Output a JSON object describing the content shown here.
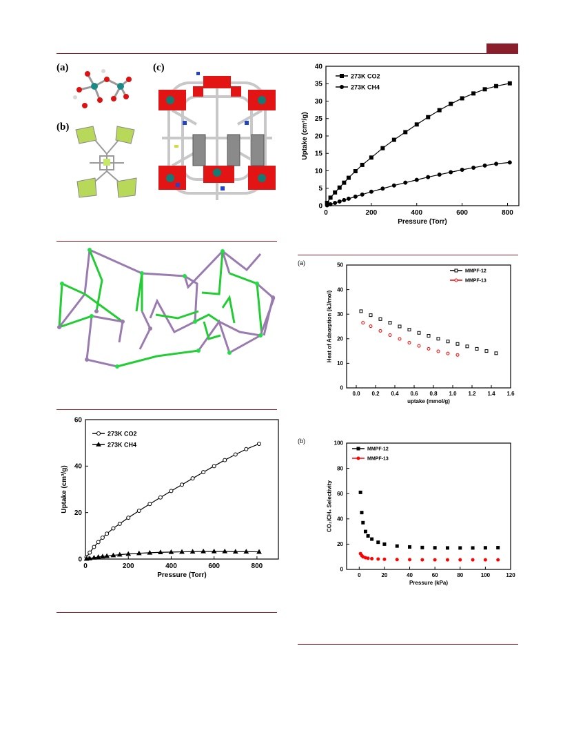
{
  "panel_labels": {
    "a": "(a)",
    "b": "(b)",
    "c": "(c)"
  },
  "heat_panel_label": "(a)",
  "selectivity_panel_label": "(b)",
  "colors": {
    "accent": "#8a1f2c",
    "mmpf12": "#000000",
    "mmpf13": "#ff0000",
    "green": "#22cc33",
    "purple": "#9a7bb0"
  },
  "chart_data": [
    {
      "type": "scatter",
      "xlabel": "Pressure (Torr)",
      "ylabel": "Uptake (cm³/g)",
      "xlim": [
        0,
        850
      ],
      "ylim": [
        0,
        40
      ],
      "xticks": [
        0,
        200,
        400,
        600,
        800
      ],
      "yticks": [
        0,
        5,
        10,
        15,
        20,
        25,
        30,
        35,
        40
      ],
      "legend": [
        "273K CO2",
        "273K CH4"
      ],
      "legend_position": "top-left",
      "series": [
        {
          "name": "273K CO2",
          "marker": "filled-square",
          "x": [
            5,
            20,
            40,
            60,
            80,
            100,
            130,
            160,
            200,
            250,
            300,
            350,
            400,
            450,
            500,
            550,
            600,
            650,
            700,
            750,
            810
          ],
          "y": [
            0.8,
            2.3,
            3.8,
            5.2,
            6.6,
            8.0,
            9.9,
            11.7,
            13.8,
            16.5,
            18.9,
            21.1,
            23.3,
            25.4,
            27.4,
            29.2,
            30.8,
            32.2,
            33.4,
            34.3,
            35.1
          ]
        },
        {
          "name": "273K CH4",
          "marker": "filled-circle",
          "x": [
            5,
            20,
            40,
            60,
            80,
            100,
            130,
            160,
            200,
            250,
            300,
            350,
            400,
            450,
            500,
            550,
            600,
            650,
            700,
            750,
            810
          ],
          "y": [
            0.1,
            0.4,
            0.8,
            1.2,
            1.6,
            2.0,
            2.6,
            3.2,
            4.0,
            4.9,
            5.8,
            6.6,
            7.4,
            8.2,
            8.9,
            9.6,
            10.3,
            10.9,
            11.5,
            12.0,
            12.4
          ]
        }
      ]
    },
    {
      "type": "scatter",
      "xlabel": "Pressure (Torr)",
      "ylabel": "Uptake (cm³/g)",
      "xlim": [
        0,
        900
      ],
      "ylim": [
        0,
        60
      ],
      "xticks": [
        0,
        200,
        400,
        600,
        800
      ],
      "yticks": [
        0,
        20,
        40,
        60
      ],
      "legend": [
        "273K CO2",
        "273K CH4"
      ],
      "legend_position": "top-left",
      "series": [
        {
          "name": "273K CO2",
          "marker": "open-circle",
          "x": [
            5,
            20,
            40,
            60,
            80,
            100,
            130,
            160,
            200,
            250,
            300,
            350,
            400,
            450,
            500,
            550,
            600,
            650,
            700,
            750,
            810
          ],
          "y": [
            0.8,
            2.8,
            5.2,
            7.3,
            9.2,
            10.9,
            13.2,
            15.2,
            17.8,
            20.8,
            23.7,
            26.5,
            29.3,
            32.0,
            34.7,
            37.4,
            40.0,
            42.6,
            45.0,
            47.3,
            49.6
          ]
        },
        {
          "name": "273K CH4",
          "marker": "filled-triangle",
          "x": [
            5,
            20,
            40,
            60,
            80,
            100,
            130,
            160,
            200,
            250,
            300,
            350,
            400,
            450,
            500,
            550,
            600,
            650,
            700,
            750,
            810
          ],
          "y": [
            0.1,
            0.3,
            0.6,
            0.9,
            1.1,
            1.3,
            1.6,
            1.9,
            2.2,
            2.5,
            2.7,
            2.9,
            3.0,
            3.1,
            3.2,
            3.3,
            3.3,
            3.3,
            3.2,
            3.2,
            3.1
          ]
        }
      ]
    },
    {
      "type": "scatter",
      "xlabel": "uptake (mmol/g)",
      "ylabel": "Heat of Adsorption (kJ/mol)",
      "xlim": [
        -0.1,
        1.6
      ],
      "ylim": [
        0,
        50
      ],
      "xticks": [
        0.0,
        0.2,
        0.4,
        0.6,
        0.8,
        1.0,
        1.2,
        1.4,
        1.6
      ],
      "yticks": [
        0,
        10,
        20,
        30,
        40,
        50
      ],
      "legend": [
        "MMPF-12",
        "MMPF-13"
      ],
      "legend_position": "top-right",
      "series": [
        {
          "name": "MMPF-12",
          "marker": "open-square",
          "x": [
            0.05,
            0.15,
            0.25,
            0.35,
            0.45,
            0.55,
            0.65,
            0.75,
            0.85,
            0.95,
            1.05,
            1.15,
            1.25,
            1.35,
            1.45
          ],
          "y": [
            31.2,
            29.6,
            28.0,
            26.5,
            25.0,
            23.7,
            22.4,
            21.2,
            20.0,
            18.9,
            17.9,
            16.9,
            15.9,
            15.0,
            14.1
          ]
        },
        {
          "name": "MMPF-13",
          "marker": "open-circle",
          "x": [
            0.07,
            0.15,
            0.25,
            0.35,
            0.45,
            0.55,
            0.65,
            0.75,
            0.85,
            0.95,
            1.05
          ],
          "y": [
            26.5,
            25.1,
            23.2,
            21.5,
            19.9,
            18.4,
            17.1,
            15.9,
            14.9,
            14.0,
            13.4
          ]
        }
      ]
    },
    {
      "type": "scatter",
      "xlabel": "Pressure (kPa)",
      "ylabel": "CO₂/CH₄ Selectivity",
      "xlim": [
        -10,
        120
      ],
      "ylim": [
        0,
        100
      ],
      "xticks": [
        0,
        20,
        40,
        60,
        80,
        100,
        120
      ],
      "yticks": [
        0,
        20,
        40,
        60,
        80,
        100
      ],
      "legend": [
        "MMPF-12",
        "MMPF-13"
      ],
      "legend_position": "top-left",
      "series": [
        {
          "name": "MMPF-12",
          "marker": "filled-square",
          "x": [
            1,
            2,
            3,
            5,
            7,
            10,
            15,
            20,
            30,
            40,
            50,
            60,
            70,
            80,
            90,
            100,
            110
          ],
          "y": [
            61,
            45,
            37,
            30,
            26.5,
            24,
            21.5,
            20,
            18.5,
            17.8,
            17.3,
            17.1,
            17.0,
            17.0,
            17.0,
            17.1,
            17.2
          ]
        },
        {
          "name": "MMPF-13",
          "marker": "filled-circle",
          "x": [
            1,
            2,
            3,
            5,
            7,
            10,
            15,
            20,
            30,
            40,
            50,
            60,
            70,
            80,
            90,
            100,
            110
          ],
          "y": [
            12.5,
            11,
            10,
            9.2,
            8.8,
            8.5,
            8.2,
            8.0,
            7.8,
            7.7,
            7.6,
            7.6,
            7.6,
            7.6,
            7.6,
            7.6,
            7.6
          ]
        }
      ]
    }
  ]
}
